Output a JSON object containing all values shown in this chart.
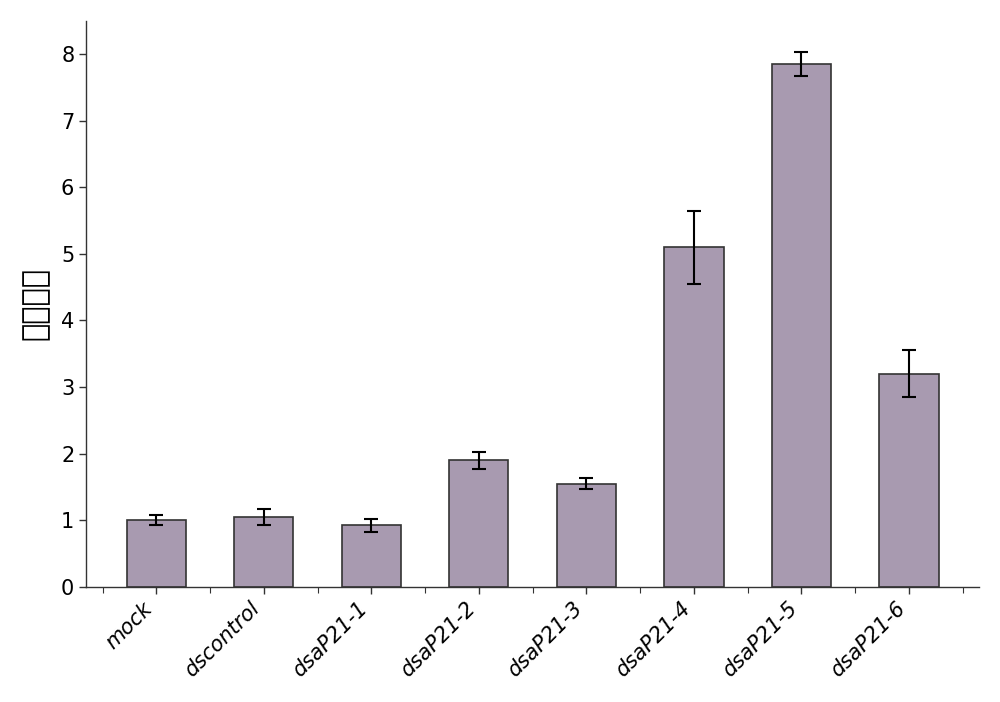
{
  "categories": [
    "mock",
    "dscontrol",
    "dsaP21-1",
    "dsaP21-2",
    "dsaP21-3",
    "dsaP21-4",
    "dsaP21-5",
    "dsaP21-6"
  ],
  "values": [
    1.0,
    1.05,
    0.92,
    1.9,
    1.55,
    5.1,
    7.85,
    3.2
  ],
  "errors": [
    0.07,
    0.12,
    0.1,
    0.13,
    0.08,
    0.55,
    0.18,
    0.35
  ],
  "bar_color": "#a89ab0",
  "bar_edgecolor": "#333333",
  "ylabel": "倍数变化",
  "ylim": [
    0,
    8.5
  ],
  "yticks": [
    0,
    1,
    2,
    3,
    4,
    5,
    6,
    7,
    8
  ],
  "figsize": [
    10.0,
    7.02
  ],
  "dpi": 100,
  "ylabel_fontsize": 22,
  "tick_fontsize": 15,
  "bar_width": 0.55,
  "background_color": "#ffffff",
  "spine_color": "#333333"
}
